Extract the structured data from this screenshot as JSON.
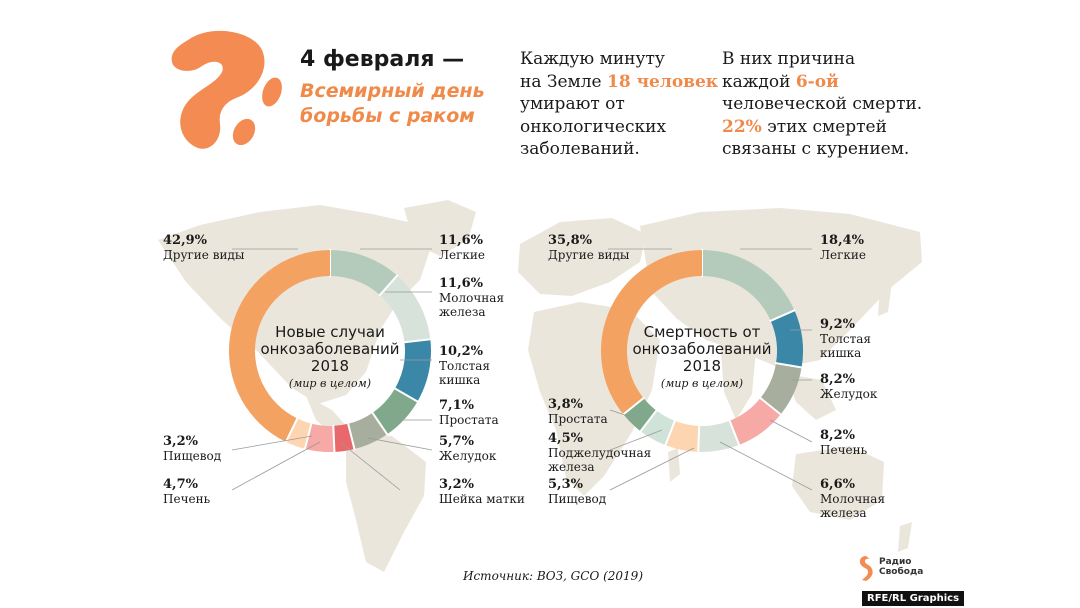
{
  "header": {
    "date": "4 февраля —",
    "subtitle_line1": "Всемирный день",
    "subtitle_line2": "борьбы с раком"
  },
  "fact1": {
    "line1": "Каждую минуту",
    "line2_a": "на Земле ",
    "line2_hl": "18 человек",
    "line3": "умирают от",
    "line4": "онкологических",
    "line5": "заболеваний."
  },
  "fact2": {
    "line1": "В них причина",
    "line2_a": "каждой ",
    "line2_hl": "6-ой",
    "line3": "человеческой смерти.",
    "line4_hl": "22%",
    "line4_b": " этих смертей",
    "line5": "связаны с курением."
  },
  "source": "Источник: ВОЗ, GCO (2019)",
  "brand": {
    "line1": "Радио",
    "line2": "Свобода"
  },
  "credit": "RFE/RL Graphics",
  "colors": {
    "accent": "#f08a4b",
    "lungs": "#b4cbbb",
    "breast": "#d7e2da",
    "colorectal": "#3a87a7",
    "prostate": "#7fa98a",
    "stomach": "#a7ae9d",
    "cervix": "#e9686c",
    "liver": "#f6a9a5",
    "pancreas": "#d0e3d9",
    "esophagus": "#fdd5b1",
    "other": "#f3a261",
    "map": "#ebe6dc"
  },
  "chart_data": [
    {
      "type": "pie",
      "title_line1": "Новые случаи",
      "title_line2": "онкозаболеваний",
      "title_line3": "2018",
      "note": "(мир в целом)",
      "slices": [
        {
          "key": "lungs",
          "value": "11,6%",
          "label1": "Легкие",
          "label2": "",
          "label3": "",
          "pct": 11.6
        },
        {
          "key": "breast",
          "value": "11,6%",
          "label1": "Молочная",
          "label2": "железа",
          "label3": "",
          "pct": 11.6
        },
        {
          "key": "colorectal",
          "value": "10,2%",
          "label1": "Толстая",
          "label2": "кишка",
          "label3": "",
          "pct": 10.2
        },
        {
          "key": "prostate",
          "value": "7,1%",
          "label1": "Простата",
          "label2": "",
          "label3": "",
          "pct": 7.1
        },
        {
          "key": "stomach",
          "value": "5,7%",
          "label1": "Желудок",
          "label2": "",
          "label3": "",
          "pct": 5.7
        },
        {
          "key": "cervix",
          "value": "3,2%",
          "label1": "Шейка матки",
          "label2": "",
          "label3": "",
          "pct": 3.2
        },
        {
          "key": "liver",
          "value": "4,7%",
          "label1": "Печень",
          "label2": "",
          "label3": "",
          "pct": 4.7
        },
        {
          "key": "esophagus",
          "value": "3,2%",
          "label1": "Пищевод",
          "label2": "",
          "label3": "",
          "pct": 3.2
        },
        {
          "key": "other",
          "value": "42,9%",
          "label1": "Другие виды",
          "label2": "",
          "label3": "",
          "pct": 42.9
        }
      ]
    },
    {
      "type": "pie",
      "title_line1": "Смертность от",
      "title_line2": "онкозаболеваний",
      "title_line3": "2018",
      "note": "(мир в целом)",
      "slices": [
        {
          "key": "lungs",
          "value": "18,4%",
          "label1": "Легкие",
          "label2": "",
          "label3": "",
          "pct": 18.4
        },
        {
          "key": "colorectal",
          "value": "9,2%",
          "label1": "Толстая",
          "label2": "кишка",
          "label3": "",
          "pct": 9.2
        },
        {
          "key": "stomach",
          "value": "8,2%",
          "label1": "Желудок",
          "label2": "",
          "label3": "",
          "pct": 8.2
        },
        {
          "key": "liver",
          "value": "8,2%",
          "label1": "Печень",
          "label2": "",
          "label3": "",
          "pct": 8.2
        },
        {
          "key": "breast",
          "value": "6,6%",
          "label1": "Молочная",
          "label2": "железа",
          "label3": "",
          "pct": 6.6
        },
        {
          "key": "esophagus",
          "value": "5,3%",
          "label1": "Пищевод",
          "label2": "",
          "label3": "",
          "pct": 5.3
        },
        {
          "key": "pancreas",
          "value": "4,5%",
          "label1": "Поджелудочная",
          "label2": "железа",
          "label3": "",
          "pct": 4.5
        },
        {
          "key": "prostate",
          "value": "3,8%",
          "label1": "Простата",
          "label2": "",
          "label3": "",
          "pct": 3.8
        },
        {
          "key": "other",
          "value": "35,8%",
          "label1": "Другие виды",
          "label2": "",
          "label3": "",
          "pct": 35.8
        }
      ]
    }
  ]
}
